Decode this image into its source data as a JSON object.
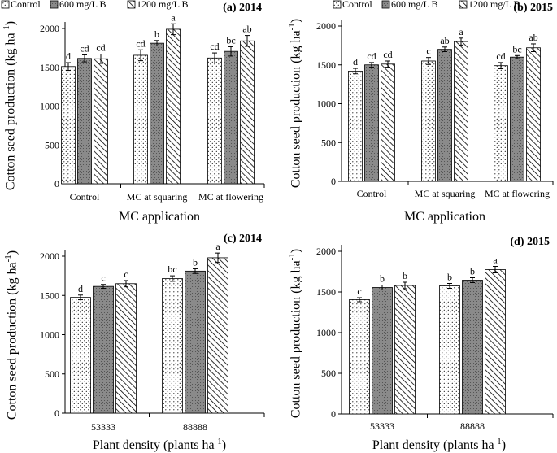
{
  "legend_entries": [
    "Control",
    "600 mg/L B",
    "1200 mg/L B"
  ],
  "chart_data": [
    {
      "type": "bar",
      "title": "(a) 2014",
      "xlabel": "MC application",
      "ylabel": "Cotton seed  production (kg ha-1)",
      "ylim": [
        0,
        2000
      ],
      "yticks": [
        0,
        500,
        1000,
        1500,
        2000
      ],
      "categories": [
        "Control",
        "MC at squaring",
        "MC at flowering"
      ],
      "series": [
        {
          "name": "Control",
          "values": [
            1510,
            1655,
            1620
          ],
          "errors": [
            50,
            70,
            65
          ],
          "labels": [
            "d",
            "cd",
            "cd"
          ]
        },
        {
          "name": "600 mg/L B",
          "values": [
            1615,
            1810,
            1705
          ],
          "errors": [
            45,
            35,
            60
          ],
          "labels": [
            "cd",
            "b",
            "bc"
          ]
        },
        {
          "name": "1200 mg/L B",
          "values": [
            1610,
            1990,
            1840
          ],
          "errors": [
            60,
            70,
            70
          ],
          "labels": [
            "cd",
            "a",
            "ab"
          ]
        }
      ]
    },
    {
      "type": "bar",
      "title": "(b) 2015",
      "xlabel": "MC application",
      "ylabel": "Cotton seed  production (kg ha-1)",
      "ylim": [
        0,
        2000
      ],
      "yticks": [
        0,
        500,
        1000,
        1500,
        2000
      ],
      "categories": [
        "Control",
        "MC at squaring",
        "MC at flowering"
      ],
      "series": [
        {
          "name": "Control",
          "values": [
            1420,
            1550,
            1490
          ],
          "errors": [
            35,
            45,
            40
          ],
          "labels": [
            "d",
            "c",
            "cd"
          ]
        },
        {
          "name": "600 mg/L B",
          "values": [
            1500,
            1700,
            1600
          ],
          "errors": [
            30,
            30,
            20
          ],
          "labels": [
            "cd",
            "ab",
            "bc"
          ]
        },
        {
          "name": "1200 mg/L B",
          "values": [
            1510,
            1800,
            1720
          ],
          "errors": [
            40,
            45,
            50
          ],
          "labels": [
            "cd",
            "a",
            "ab"
          ]
        }
      ]
    },
    {
      "type": "bar",
      "title": "(c) 2014",
      "xlabel": "Plant density (plants ha-1)",
      "ylabel": "Cotton seed production (kg ha-1)",
      "ylim": [
        0,
        2000
      ],
      "yticks": [
        0,
        500,
        1000,
        1500,
        2000
      ],
      "categories": [
        "53333",
        "88888"
      ],
      "series": [
        {
          "name": "Control",
          "values": [
            1475,
            1715
          ],
          "errors": [
            30,
            35
          ],
          "labels": [
            "d",
            "bc"
          ]
        },
        {
          "name": "600 mg/L B",
          "values": [
            1615,
            1810
          ],
          "errors": [
            25,
            30
          ],
          "labels": [
            "c",
            "b"
          ]
        },
        {
          "name": "1200 mg/L B",
          "values": [
            1650,
            1980
          ],
          "errors": [
            40,
            60
          ],
          "labels": [
            "c",
            "a"
          ]
        }
      ]
    },
    {
      "type": "bar",
      "title": "(d) 2015",
      "xlabel": "Plant density (plants ha-1)",
      "ylabel": "Cotton seed  production (kg ha-1)",
      "ylim": [
        0,
        2000
      ],
      "yticks": [
        0,
        500,
        1000,
        1500,
        2000
      ],
      "categories": [
        "53333",
        "88888"
      ],
      "series": [
        {
          "name": "Control",
          "values": [
            1405,
            1575
          ],
          "errors": [
            25,
            30
          ],
          "labels": [
            "c",
            "b"
          ]
        },
        {
          "name": "600 mg/L B",
          "values": [
            1555,
            1645
          ],
          "errors": [
            30,
            30
          ],
          "labels": [
            "b",
            "b"
          ]
        },
        {
          "name": "1200 mg/L B",
          "values": [
            1580,
            1775
          ],
          "errors": [
            40,
            40
          ],
          "labels": [
            "b",
            "a"
          ]
        }
      ]
    }
  ]
}
